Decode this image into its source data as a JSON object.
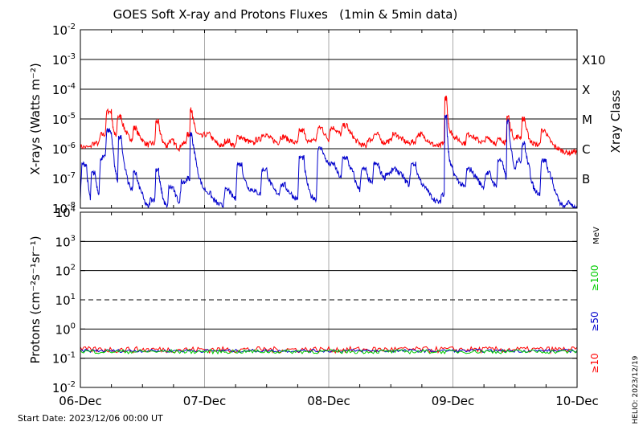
{
  "chart_data": [
    {
      "type": "line",
      "title": "GOES Soft X-ray and Protons Fluxes   (1min & 5min data)",
      "ylabel": "X-rays (Watts m⁻²)",
      "yscale": "log",
      "ylim": [
        1e-08,
        0.01
      ],
      "ytick_mantissa": "10",
      "ytick_exponents": [
        "-2",
        "-3",
        "-4",
        "-5",
        "-6",
        "-7",
        "-8"
      ],
      "x_ticks": [
        "06-Dec",
        "07-Dec",
        "08-Dec",
        "09-Dec",
        "10-Dec"
      ],
      "xlim_days": [
        0,
        4
      ],
      "right_axis": {
        "title": "Xray Class",
        "classes": [
          {
            "label": "X10",
            "value": 0.001
          },
          {
            "label": "X",
            "value": 0.0001
          },
          {
            "label": "M",
            "value": 1e-05
          },
          {
            "label": "C",
            "value": 1e-06
          },
          {
            "label": "B",
            "value": 1e-07
          }
        ]
      },
      "series": [
        {
          "color": "#ff0000",
          "x_days": [
            0.0,
            0.08,
            0.15,
            0.2,
            0.25,
            0.27,
            0.29,
            0.33,
            0.38,
            0.42,
            0.45,
            0.5,
            0.55,
            0.6,
            0.63,
            0.66,
            0.7,
            0.75,
            0.8,
            0.85,
            0.88,
            0.9,
            0.93,
            0.98,
            1.05,
            1.1,
            1.15,
            1.2,
            1.25,
            1.3,
            1.35,
            1.4,
            1.45,
            1.5,
            1.55,
            1.6,
            1.65,
            1.7,
            1.75,
            1.8,
            1.85,
            1.9,
            1.95,
            2.0,
            2.05,
            2.1,
            2.15,
            2.2,
            2.25,
            2.3,
            2.35,
            2.4,
            2.45,
            2.5,
            2.55,
            2.6,
            2.65,
            2.7,
            2.75,
            2.8,
            2.85,
            2.9,
            2.93,
            2.95,
            2.97,
            3.0,
            3.05,
            3.1,
            3.15,
            3.2,
            3.25,
            3.3,
            3.35,
            3.4,
            3.43,
            3.45,
            3.5,
            3.55,
            3.58,
            3.62,
            3.65,
            3.7,
            3.75,
            3.8,
            3.85,
            3.9,
            3.95,
            4.0
          ],
          "values": [
            1.2e-06,
            1.1e-06,
            1.5e-06,
            3e-06,
            1.8e-05,
            4e-06,
            2.5e-06,
            1.2e-05,
            3e-06,
            2e-06,
            5e-06,
            2e-06,
            1.3e-06,
            1.5e-06,
            8e-06,
            2e-06,
            1.2e-06,
            1.8e-06,
            1e-06,
            1.5e-06,
            3e-06,
            2e-05,
            4e-06,
            2.5e-06,
            3e-06,
            1.5e-06,
            1.2e-06,
            1.8e-06,
            1.2e-06,
            2.5e-06,
            1.8e-06,
            1.5e-06,
            2e-06,
            3e-06,
            2e-06,
            1.6e-06,
            2.5e-06,
            1.8e-06,
            1.5e-06,
            4e-06,
            1.5e-06,
            2e-06,
            5e-06,
            2e-06,
            5e-06,
            3e-06,
            6e-06,
            2.5e-06,
            1.5e-06,
            1.2e-06,
            2e-06,
            3e-06,
            1.5e-06,
            1.8e-06,
            3e-06,
            2e-06,
            1.5e-06,
            1.7e-06,
            3e-06,
            2e-06,
            1.3e-06,
            1.2e-06,
            1.5e-06,
            5e-05,
            5e-06,
            3e-06,
            2e-06,
            1.5e-06,
            3e-06,
            2e-06,
            1.6e-06,
            2.2e-06,
            1.5e-06,
            2e-06,
            1.5e-06,
            1.2e-05,
            2e-06,
            2.5e-06,
            1e-05,
            2e-06,
            1.5e-06,
            1.3e-06,
            4e-06,
            1.5e-06,
            1e-06,
            8e-07,
            7e-07,
            8e-07
          ]
        },
        {
          "color": "#0000cc",
          "x_days": [
            0.0,
            0.05,
            0.08,
            0.12,
            0.15,
            0.2,
            0.25,
            0.27,
            0.3,
            0.33,
            0.38,
            0.42,
            0.45,
            0.5,
            0.55,
            0.6,
            0.63,
            0.66,
            0.7,
            0.75,
            0.8,
            0.85,
            0.88,
            0.9,
            0.93,
            0.98,
            1.05,
            1.1,
            1.15,
            1.2,
            1.25,
            1.3,
            1.35,
            1.4,
            1.45,
            1.5,
            1.55,
            1.6,
            1.65,
            1.7,
            1.75,
            1.8,
            1.85,
            1.9,
            1.95,
            2.0,
            2.05,
            2.1,
            2.15,
            2.2,
            2.25,
            2.3,
            2.35,
            2.4,
            2.45,
            2.5,
            2.55,
            2.6,
            2.65,
            2.7,
            2.75,
            2.8,
            2.85,
            2.9,
            2.93,
            2.95,
            2.97,
            3.0,
            3.05,
            3.1,
            3.15,
            3.2,
            3.25,
            3.3,
            3.35,
            3.4,
            3.43,
            3.45,
            3.5,
            3.55,
            3.58,
            3.62,
            3.65,
            3.7,
            3.75,
            3.8,
            3.85,
            3.9,
            3.95,
            4.0
          ],
          "values": [
            2e-08,
            3e-07,
            2e-08,
            1.5e-07,
            3e-08,
            5e-07,
            4e-06,
            6e-07,
            8e-08,
            2.5e-06,
            1e-07,
            4e-08,
            1.5e-07,
            3e-08,
            1e-08,
            2e-08,
            2e-07,
            3e-08,
            1e-08,
            5e-08,
            1.5e-08,
            8e-08,
            1e-07,
            3e-06,
            5e-07,
            6e-08,
            3e-08,
            1.5e-08,
            1.2e-08,
            4e-08,
            2e-08,
            3e-07,
            5e-08,
            4e-08,
            3e-08,
            2e-07,
            5e-08,
            3e-08,
            6e-08,
            3e-08,
            2e-08,
            5e-07,
            3e-08,
            2e-08,
            1e-06,
            3e-07,
            3e-07,
            1e-07,
            5e-07,
            1.5e-07,
            4e-08,
            2e-07,
            6e-08,
            3e-07,
            1e-07,
            1.5e-07,
            2e-07,
            1.2e-07,
            6e-08,
            3e-07,
            7e-08,
            4e-08,
            2e-08,
            1.5e-08,
            3e-08,
            1.2e-05,
            5e-07,
            2e-07,
            8e-08,
            5e-08,
            2e-07,
            1e-07,
            5e-08,
            1.5e-07,
            5e-08,
            4e-07,
            1e-07,
            8e-06,
            2e-07,
            4e-07,
            1.5e-06,
            2e-07,
            5e-08,
            3e-08,
            4e-07,
            1e-07,
            2e-08,
            1e-08,
            1.5e-08,
            1e-08
          ]
        }
      ]
    },
    {
      "type": "line",
      "ylabel": "Protons (cm⁻²s⁻¹sr⁻¹)",
      "yscale": "log",
      "ylim": [
        0.01,
        10000.0
      ],
      "ytick_mantissa": "10",
      "ytick_exponents": [
        "4",
        "3",
        "2",
        "1",
        "0",
        "-1",
        "-2"
      ],
      "x_ticks": [
        "06-Dec",
        "07-Dec",
        "08-Dec",
        "09-Dec",
        "10-Dec"
      ],
      "xlim_days": [
        0,
        4
      ],
      "threshold_line": 10,
      "legend_unit": "MeV",
      "legend": [
        {
          "label": "≥10",
          "color": "#ff0000"
        },
        {
          "label": "≥50",
          "color": "#0000cc"
        },
        {
          "label": "≥100",
          "color": "#00cc00"
        }
      ],
      "series": [
        {
          "color": "#ff0000",
          "level": 0.2,
          "jitter": 0.06
        },
        {
          "color": "#0000cc",
          "level": 0.18,
          "jitter": 0.03
        },
        {
          "color": "#00cc00",
          "level": 0.17,
          "jitter": 0.04
        }
      ]
    }
  ],
  "footer": {
    "start_date": "Start Date: 2023/12/06 00:00 UT",
    "credit": "HELIO: 2023/12/19"
  }
}
